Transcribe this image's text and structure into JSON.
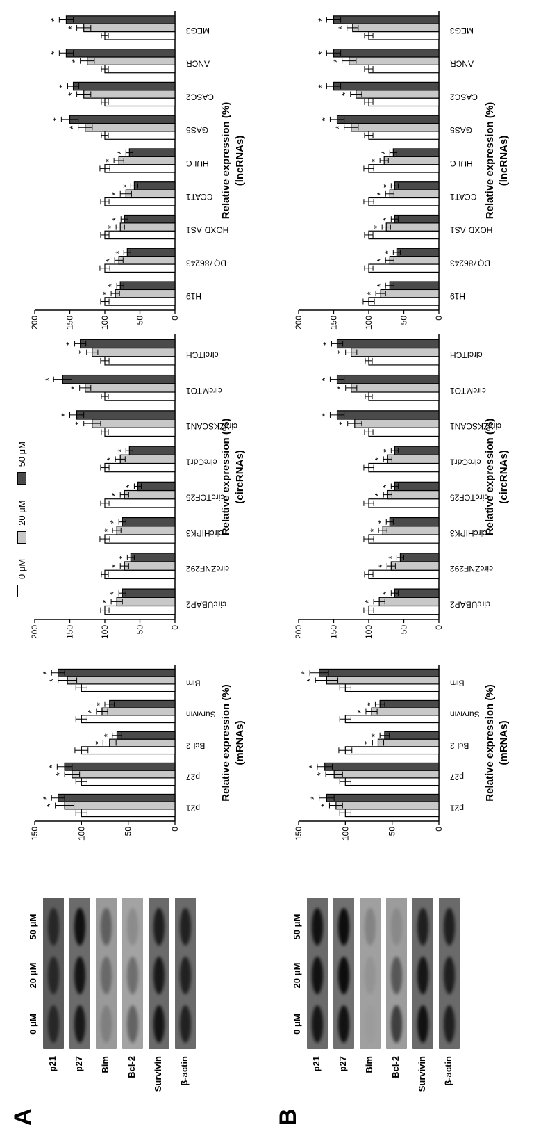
{
  "figure": {
    "panels": [
      {
        "letter": "A"
      },
      {
        "letter": "B"
      }
    ],
    "legend": {
      "items": [
        {
          "label": "0 μM",
          "color": "#ffffff"
        },
        {
          "label": "20 μM",
          "color": "#c8c8c8"
        },
        {
          "label": "50 μM",
          "color": "#4a4a4a"
        }
      ]
    },
    "blots": [
      {
        "panel": "A",
        "lane_labels": [
          "0 μM",
          "20 μM",
          "50 μM"
        ],
        "rows": [
          {
            "label": "p21",
            "background": "#5c5c5c",
            "band_color": "#1a1a1a",
            "band_intensity": [
              0.8,
              0.8,
              0.8
            ]
          },
          {
            "label": "p27",
            "background": "#6b6b6b",
            "band_color": "#101010",
            "band_intensity": [
              0.9,
              0.95,
              1.0
            ]
          },
          {
            "label": "Bim",
            "background": "#9a9a9a",
            "band_color": "#303030",
            "band_intensity": [
              0.25,
              0.45,
              0.55
            ]
          },
          {
            "label": "Bcl-2",
            "background": "#a3a3a3",
            "band_color": "#303030",
            "band_intensity": [
              0.55,
              0.45,
              0.2
            ]
          },
          {
            "label": "Survivin",
            "background": "#6a6a6a",
            "band_color": "#101010",
            "band_intensity": [
              0.95,
              0.9,
              0.85
            ]
          },
          {
            "label": "β-actin",
            "background": "#6a6a6a",
            "band_color": "#151515",
            "band_intensity": [
              0.85,
              0.85,
              0.85
            ]
          }
        ]
      },
      {
        "panel": "B",
        "lane_labels": [
          "0 μM",
          "20 μM",
          "50 μM"
        ],
        "rows": [
          {
            "label": "p21",
            "background": "#6a6a6a",
            "band_color": "#0d0d0d",
            "band_intensity": [
              0.9,
              0.95,
              0.95
            ]
          },
          {
            "label": "p27",
            "background": "#707070",
            "band_color": "#0d0d0d",
            "band_intensity": [
              0.95,
              1.0,
              1.0
            ]
          },
          {
            "label": "Bim",
            "background": "#a0a0a0",
            "band_color": "#505050",
            "band_intensity": [
              0.05,
              0.15,
              0.35
            ]
          },
          {
            "label": "Bcl-2",
            "background": "#9c9c9c",
            "band_color": "#202020",
            "band_intensity": [
              0.75,
              0.55,
              0.15
            ]
          },
          {
            "label": "Survivin",
            "background": "#6a6a6a",
            "band_color": "#0d0d0d",
            "band_intensity": [
              0.95,
              0.9,
              0.8
            ]
          },
          {
            "label": "β-actin",
            "background": "#6a6a6a",
            "band_color": "#121212",
            "band_intensity": [
              0.85,
              0.85,
              0.85
            ]
          }
        ]
      }
    ]
  },
  "chart_data": [
    {
      "panel": "A",
      "type": "bar",
      "ylabel": "Relative expression (%)",
      "ylabel2": "(mRNAs)",
      "ylim": [
        0,
        150
      ],
      "yticks": [
        0,
        50,
        100,
        150
      ],
      "categories": [
        "p21",
        "p27",
        "Bcl-2",
        "Survivin",
        "Bim"
      ],
      "series": [
        {
          "name": "0 μM",
          "color": "#ffffff",
          "values": [
            100,
            100,
            100,
            100,
            100
          ],
          "errors": [
            6,
            6,
            7,
            6,
            6
          ],
          "sig": [
            false,
            false,
            false,
            false,
            false
          ]
        },
        {
          "name": "20 μM",
          "color": "#c8c8c8",
          "values": [
            118,
            110,
            70,
            78,
            115
          ],
          "errors": [
            10,
            8,
            7,
            6,
            10
          ],
          "sig": [
            true,
            true,
            true,
            true,
            true
          ]
        },
        {
          "name": "50 μM",
          "color": "#4a4a4a",
          "values": [
            125,
            118,
            62,
            70,
            125
          ],
          "errors": [
            7,
            8,
            5,
            5,
            7
          ],
          "sig": [
            true,
            true,
            true,
            true,
            true
          ]
        }
      ]
    },
    {
      "panel": "A",
      "type": "bar",
      "ylabel": "Relative expression (%)",
      "ylabel2": "(circRNAs)",
      "ylim": [
        0,
        200
      ],
      "yticks": [
        0,
        50,
        100,
        150,
        200
      ],
      "categories": [
        "circUBAP2",
        "circZNF292",
        "circHIPK3",
        "circTCF25",
        "circCdr1",
        "circZKSCAN1",
        "circMTO1",
        "circITCH"
      ],
      "series": [
        {
          "name": "0 μM",
          "color": "#ffffff",
          "values": [
            100,
            100,
            100,
            100,
            100,
            100,
            100,
            100
          ],
          "errors": [
            6,
            5,
            7,
            6,
            6,
            5,
            5,
            6
          ],
          "sig": [
            false,
            false,
            false,
            false,
            false,
            false,
            false,
            false
          ]
        },
        {
          "name": "20 μM",
          "color": "#c8c8c8",
          "values": [
            83,
            72,
            83,
            72,
            78,
            118,
            128,
            118
          ],
          "errors": [
            8,
            6,
            6,
            6,
            7,
            12,
            8,
            8
          ],
          "sig": [
            true,
            true,
            true,
            true,
            true,
            true,
            true,
            true
          ]
        },
        {
          "name": "50 μM",
          "color": "#4a4a4a",
          "values": [
            75,
            63,
            75,
            53,
            65,
            140,
            160,
            135
          ],
          "errors": [
            5,
            5,
            5,
            5,
            5,
            10,
            13,
            8
          ],
          "sig": [
            true,
            true,
            true,
            true,
            true,
            true,
            true,
            true
          ]
        }
      ]
    },
    {
      "panel": "A",
      "type": "bar",
      "ylabel": "Relative expression (%)",
      "ylabel2": "(lncRNAs)",
      "ylim": [
        0,
        200
      ],
      "yticks": [
        0,
        50,
        100,
        150,
        200
      ],
      "categories": [
        "H19",
        "DQ786243",
        "HOXD-AS1",
        "CCAT1",
        "HULC",
        "GAS5",
        "CASC2",
        "ANCR",
        "MEG3"
      ],
      "series": [
        {
          "name": "0 μM",
          "color": "#ffffff",
          "values": [
            100,
            100,
            100,
            100,
            100,
            100,
            100,
            100,
            100
          ],
          "errors": [
            6,
            7,
            6,
            6,
            7,
            5,
            5,
            5,
            5
          ],
          "sig": [
            false,
            false,
            false,
            false,
            false,
            false,
            false,
            false,
            false
          ]
        },
        {
          "name": "20 μM",
          "color": "#c8c8c8",
          "values": [
            85,
            80,
            78,
            70,
            80,
            128,
            130,
            125,
            130
          ],
          "errors": [
            6,
            6,
            6,
            8,
            7,
            10,
            10,
            10,
            10
          ],
          "sig": [
            true,
            true,
            true,
            true,
            true,
            true,
            true,
            true,
            true
          ]
        },
        {
          "name": "50 μM",
          "color": "#4a4a4a",
          "values": [
            78,
            68,
            72,
            58,
            65,
            150,
            145,
            155,
            155
          ],
          "errors": [
            5,
            5,
            5,
            5,
            5,
            12,
            8,
            10,
            10
          ],
          "sig": [
            true,
            true,
            true,
            true,
            true,
            true,
            true,
            true,
            true
          ]
        }
      ]
    },
    {
      "panel": "B",
      "type": "bar",
      "ylabel": "Relative expression (%)",
      "ylabel2": "(mRNAs)",
      "ylim": [
        0,
        150
      ],
      "yticks": [
        0,
        50,
        100,
        150
      ],
      "categories": [
        "p21",
        "p27",
        "Bcl-2",
        "Survivin",
        "Bim"
      ],
      "series": [
        {
          "name": "0 μM",
          "color": "#ffffff",
          "values": [
            100,
            100,
            100,
            100,
            100
          ],
          "errors": [
            6,
            6,
            7,
            6,
            6
          ],
          "sig": [
            false,
            false,
            false,
            false,
            false
          ]
        },
        {
          "name": "20 μM",
          "color": "#c8c8c8",
          "values": [
            110,
            112,
            65,
            72,
            120
          ],
          "errors": [
            7,
            9,
            6,
            6,
            12
          ],
          "sig": [
            true,
            true,
            true,
            true,
            true
          ]
        },
        {
          "name": "50 μM",
          "color": "#4a4a4a",
          "values": [
            120,
            122,
            58,
            63,
            128
          ],
          "errors": [
            8,
            8,
            5,
            5,
            10
          ],
          "sig": [
            true,
            true,
            true,
            true,
            true
          ]
        }
      ]
    },
    {
      "panel": "B",
      "type": "bar",
      "ylabel": "Relative expression (%)",
      "ylabel2": "(circRNAs)",
      "ylim": [
        0,
        200
      ],
      "yticks": [
        0,
        50,
        100,
        150,
        200
      ],
      "categories": [
        "circUBAP2",
        "circZNF292",
        "circHIPK3",
        "circTCF25",
        "circCdr1",
        "circZKSCAN1",
        "circMTO1",
        "circITCH"
      ],
      "series": [
        {
          "name": "0 μM",
          "color": "#ffffff",
          "values": [
            100,
            100,
            100,
            100,
            100,
            100,
            100,
            100
          ],
          "errors": [
            7,
            6,
            7,
            7,
            7,
            6,
            5,
            5
          ],
          "sig": [
            false,
            false,
            false,
            false,
            false,
            false,
            false,
            false
          ]
        },
        {
          "name": "20 μM",
          "color": "#c8c8c8",
          "values": [
            85,
            68,
            80,
            73,
            73,
            120,
            125,
            125
          ],
          "errors": [
            8,
            6,
            6,
            6,
            6,
            10,
            8,
            8
          ],
          "sig": [
            true,
            true,
            true,
            true,
            true,
            true,
            true,
            true
          ]
        },
        {
          "name": "50 μM",
          "color": "#4a4a4a",
          "values": [
            63,
            55,
            70,
            63,
            63,
            145,
            145,
            145
          ],
          "errors": [
            5,
            5,
            5,
            5,
            5,
            10,
            10,
            8
          ],
          "sig": [
            true,
            true,
            true,
            true,
            true,
            true,
            true,
            true
          ]
        }
      ]
    },
    {
      "panel": "B",
      "type": "bar",
      "ylabel": "Relative expression (%)",
      "ylabel2": "(lncRNAs)",
      "ylim": [
        0,
        200
      ],
      "yticks": [
        0,
        50,
        100,
        150,
        200
      ],
      "categories": [
        "H19",
        "DQ786243",
        "HOXD-AS1",
        "CCAT1",
        "HULC",
        "GAS5",
        "CASC2",
        "ANCR",
        "MEG3"
      ],
      "series": [
        {
          "name": "0 μM",
          "color": "#ffffff",
          "values": [
            100,
            100,
            100,
            100,
            100,
            100,
            100,
            100,
            100
          ],
          "errors": [
            8,
            6,
            6,
            7,
            7,
            6,
            6,
            6,
            6
          ],
          "sig": [
            false,
            false,
            false,
            false,
            false,
            false,
            false,
            false,
            false
          ]
        },
        {
          "name": "20 μM",
          "color": "#c8c8c8",
          "values": [
            83,
            70,
            75,
            70,
            78,
            125,
            118,
            128,
            123
          ],
          "errors": [
            7,
            6,
            6,
            6,
            6,
            10,
            8,
            10,
            8
          ],
          "sig": [
            true,
            true,
            true,
            true,
            true,
            true,
            true,
            true,
            true
          ]
        },
        {
          "name": "50 μM",
          "color": "#4a4a4a",
          "values": [
            70,
            60,
            63,
            63,
            65,
            145,
            150,
            150,
            150
          ],
          "errors": [
            6,
            5,
            5,
            5,
            5,
            10,
            10,
            10,
            10
          ],
          "sig": [
            true,
            true,
            true,
            true,
            true,
            true,
            true,
            true,
            true
          ]
        }
      ]
    }
  ]
}
